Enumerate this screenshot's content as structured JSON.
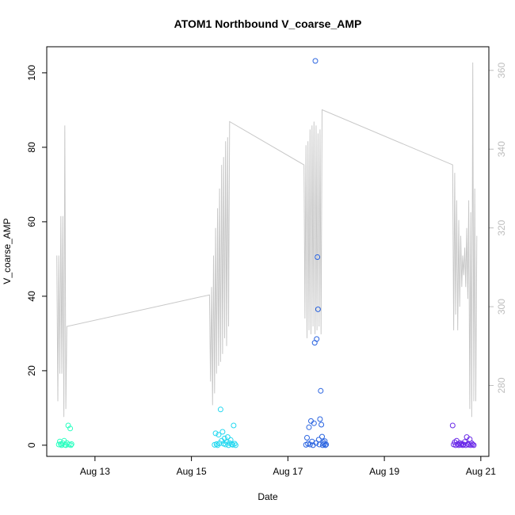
{
  "chart_data": {
    "type": "scatter",
    "title": "ATOM1 Northbound V_coarse_AMP",
    "xlabel": "Date",
    "ylabel": "V_coarse_AMP",
    "x_type": "date",
    "xlim": [
      "2023-08-12T00:00",
      "2023-08-21T04:00"
    ],
    "ylim": [
      -3,
      107
    ],
    "y2lim": [
      262,
      366
    ],
    "x_ticks": [
      {
        "date": "2023-08-13",
        "label": "Aug 13"
      },
      {
        "date": "2023-08-15",
        "label": "Aug 15"
      },
      {
        "date": "2023-08-17",
        "label": "Aug 17"
      },
      {
        "date": "2023-08-19",
        "label": "Aug 19"
      },
      {
        "date": "2023-08-21",
        "label": "Aug 21"
      }
    ],
    "y_ticks": [
      0,
      20,
      40,
      60,
      80,
      100
    ],
    "y2_ticks": [
      280,
      300,
      320,
      340,
      360
    ],
    "grid": false,
    "legend": "none",
    "line_color": "#c8c8c8",
    "series": [
      {
        "color": "#2affc0",
        "points": [
          [
            "2023-08-12T06:00",
            0.2
          ],
          [
            "2023-08-12T06:30",
            1.0
          ],
          [
            "2023-08-12T07:00",
            0.3
          ],
          [
            "2023-08-12T07:20",
            0.0
          ],
          [
            "2023-08-12T08:00",
            0.5
          ],
          [
            "2023-08-12T08:40",
            1.2
          ],
          [
            "2023-08-12T09:00",
            0.1
          ],
          [
            "2023-08-12T09:30",
            0.0
          ],
          [
            "2023-08-12T10:00",
            0.6
          ],
          [
            "2023-08-12T10:40",
            5.3
          ],
          [
            "2023-08-12T11:00",
            0.2
          ],
          [
            "2023-08-12T11:40",
            4.5
          ],
          [
            "2023-08-12T12:00",
            0.0
          ],
          [
            "2023-08-12T12:20",
            0.3
          ]
        ]
      },
      {
        "color": "#22d8f0",
        "points": [
          [
            "2023-08-15T11:30",
            0.1
          ],
          [
            "2023-08-15T12:00",
            3.2
          ],
          [
            "2023-08-15T12:30",
            0.3
          ],
          [
            "2023-08-15T13:00",
            0.0
          ],
          [
            "2023-08-15T13:30",
            2.8
          ],
          [
            "2023-08-15T14:00",
            0.5
          ],
          [
            "2023-08-15T14:30",
            9.6
          ],
          [
            "2023-08-15T15:00",
            1.2
          ],
          [
            "2023-08-15T15:30",
            3.6
          ],
          [
            "2023-08-15T16:00",
            0.4
          ],
          [
            "2023-08-15T16:30",
            1.8
          ],
          [
            "2023-08-15T17:00",
            0.2
          ],
          [
            "2023-08-15T17:30",
            0.9
          ],
          [
            "2023-08-15T18:00",
            2.2
          ],
          [
            "2023-08-15T18:30",
            0.0
          ],
          [
            "2023-08-15T19:00",
            0.6
          ],
          [
            "2023-08-15T19:30",
            1.4
          ],
          [
            "2023-08-15T20:00",
            0.3
          ],
          [
            "2023-08-15T20:30",
            0.1
          ],
          [
            "2023-08-15T21:00",
            5.3
          ],
          [
            "2023-08-15T21:30",
            0.4
          ],
          [
            "2023-08-15T22:00",
            0.0
          ]
        ]
      },
      {
        "color": "#2a64e0",
        "points": [
          [
            "2023-08-17T09:00",
            0.1
          ],
          [
            "2023-08-17T09:30",
            2.0
          ],
          [
            "2023-08-17T10:00",
            0.4
          ],
          [
            "2023-08-17T10:30",
            4.8
          ],
          [
            "2023-08-17T11:00",
            0.2
          ],
          [
            "2023-08-17T11:30",
            6.5
          ],
          [
            "2023-08-17T12:00",
            1.0
          ],
          [
            "2023-08-17T12:30",
            0.0
          ],
          [
            "2023-08-17T13:00",
            5.9
          ],
          [
            "2023-08-17T13:20",
            27.5
          ],
          [
            "2023-08-17T13:40",
            103.2
          ],
          [
            "2023-08-17T14:00",
            0.6
          ],
          [
            "2023-08-17T14:20",
            28.5
          ],
          [
            "2023-08-17T14:40",
            50.5
          ],
          [
            "2023-08-17T15:00",
            36.5
          ],
          [
            "2023-08-17T15:20",
            1.5
          ],
          [
            "2023-08-17T15:40",
            0.2
          ],
          [
            "2023-08-17T16:00",
            7.0
          ],
          [
            "2023-08-17T16:20",
            14.6
          ],
          [
            "2023-08-17T16:40",
            5.5
          ],
          [
            "2023-08-17T17:00",
            2.3
          ],
          [
            "2023-08-17T17:20",
            0.0
          ],
          [
            "2023-08-17T17:40",
            0.8
          ],
          [
            "2023-08-17T18:00",
            0.3
          ],
          [
            "2023-08-17T18:20",
            1.1
          ],
          [
            "2023-08-17T18:40",
            0.0
          ],
          [
            "2023-08-17T19:00",
            0.2
          ]
        ]
      },
      {
        "color": "#6a2ae8",
        "points": [
          [
            "2023-08-20T10:00",
            5.3
          ],
          [
            "2023-08-20T10:30",
            0.2
          ],
          [
            "2023-08-20T11:00",
            0.8
          ],
          [
            "2023-08-20T11:30",
            0.0
          ],
          [
            "2023-08-20T12:00",
            1.2
          ],
          [
            "2023-08-20T12:30",
            0.3
          ],
          [
            "2023-08-20T13:00",
            0.0
          ],
          [
            "2023-08-20T13:30",
            0.6
          ],
          [
            "2023-08-20T14:00",
            0.1
          ],
          [
            "2023-08-20T14:30",
            0.4
          ],
          [
            "2023-08-20T15:00",
            0.0
          ],
          [
            "2023-08-20T15:30",
            0.2
          ],
          [
            "2023-08-20T16:00",
            0.9
          ],
          [
            "2023-08-20T16:30",
            0.0
          ],
          [
            "2023-08-20T17:00",
            2.2
          ],
          [
            "2023-08-20T17:30",
            0.3
          ],
          [
            "2023-08-20T18:00",
            0.1
          ],
          [
            "2023-08-20T18:30",
            1.6
          ],
          [
            "2023-08-20T19:00",
            0.0
          ],
          [
            "2023-08-20T19:30",
            0.5
          ],
          [
            "2023-08-20T20:00",
            0.2
          ],
          [
            "2023-08-20T20:30",
            0.0
          ]
        ]
      }
    ],
    "line": [
      [
        "2023-08-12T05:00",
        313
      ],
      [
        "2023-08-12T05:30",
        276
      ],
      [
        "2023-08-12T06:00",
        313
      ],
      [
        "2023-08-12T06:30",
        283
      ],
      [
        "2023-08-12T07:00",
        323
      ],
      [
        "2023-08-12T07:30",
        283
      ],
      [
        "2023-08-12T08:00",
        323
      ],
      [
        "2023-08-12T08:30",
        272
      ],
      [
        "2023-08-12T09:00",
        346
      ],
      [
        "2023-08-12T09:30",
        274
      ],
      [
        "2023-08-12T10:00",
        295
      ],
      [
        "2023-08-15T09:00",
        303
      ],
      [
        "2023-08-15T09:30",
        281
      ],
      [
        "2023-08-15T10:00",
        305
      ],
      [
        "2023-08-15T10:30",
        275
      ],
      [
        "2023-08-15T11:00",
        313
      ],
      [
        "2023-08-15T11:30",
        278
      ],
      [
        "2023-08-15T12:00",
        320
      ],
      [
        "2023-08-15T12:30",
        283
      ],
      [
        "2023-08-15T13:00",
        325
      ],
      [
        "2023-08-15T13:30",
        285
      ],
      [
        "2023-08-15T14:00",
        330
      ],
      [
        "2023-08-15T14:30",
        286
      ],
      [
        "2023-08-15T15:00",
        336
      ],
      [
        "2023-08-15T15:30",
        288
      ],
      [
        "2023-08-15T16:00",
        338
      ],
      [
        "2023-08-15T16:30",
        292
      ],
      [
        "2023-08-15T17:00",
        342
      ],
      [
        "2023-08-15T17:30",
        290
      ],
      [
        "2023-08-15T18:00",
        343
      ],
      [
        "2023-08-15T18:30",
        295
      ],
      [
        "2023-08-15T19:00",
        347
      ],
      [
        "2023-08-17T08:00",
        336
      ],
      [
        "2023-08-17T08:30",
        297
      ],
      [
        "2023-08-17T09:00",
        341
      ],
      [
        "2023-08-17T09:30",
        292
      ],
      [
        "2023-08-17T10:00",
        342
      ],
      [
        "2023-08-17T10:30",
        294
      ],
      [
        "2023-08-17T11:00",
        345
      ],
      [
        "2023-08-17T11:30",
        293
      ],
      [
        "2023-08-17T12:00",
        346
      ],
      [
        "2023-08-17T12:30",
        295
      ],
      [
        "2023-08-17T13:00",
        347
      ],
      [
        "2023-08-17T13:30",
        293
      ],
      [
        "2023-08-17T14:00",
        346
      ],
      [
        "2023-08-17T14:30",
        294
      ],
      [
        "2023-08-17T15:00",
        344
      ],
      [
        "2023-08-17T15:30",
        295
      ],
      [
        "2023-08-17T16:00",
        345
      ],
      [
        "2023-08-17T16:30",
        293
      ],
      [
        "2023-08-17T17:00",
        350
      ],
      [
        "2023-08-20T10:00",
        336
      ],
      [
        "2023-08-20T10:30",
        294
      ],
      [
        "2023-08-20T11:00",
        334
      ],
      [
        "2023-08-20T11:30",
        298
      ],
      [
        "2023-08-20T12:00",
        327
      ],
      [
        "2023-08-20T12:30",
        294
      ],
      [
        "2023-08-20T13:00",
        322
      ],
      [
        "2023-08-20T13:30",
        300
      ],
      [
        "2023-08-20T14:00",
        318
      ],
      [
        "2023-08-20T14:30",
        305
      ],
      [
        "2023-08-20T15:00",
        313
      ],
      [
        "2023-08-20T15:30",
        308
      ],
      [
        "2023-08-20T16:00",
        315
      ],
      [
        "2023-08-20T16:30",
        305
      ],
      [
        "2023-08-20T17:00",
        320
      ],
      [
        "2023-08-20T17:30",
        302
      ],
      [
        "2023-08-20T18:00",
        327
      ],
      [
        "2023-08-20T18:30",
        274
      ],
      [
        "2023-08-20T19:00",
        324
      ],
      [
        "2023-08-20T19:30",
        272
      ],
      [
        "2023-08-20T20:00",
        362
      ],
      [
        "2023-08-20T20:30",
        276
      ],
      [
        "2023-08-20T21:00",
        330
      ],
      [
        "2023-08-20T21:30",
        276
      ],
      [
        "2023-08-20T22:00",
        318
      ]
    ]
  }
}
